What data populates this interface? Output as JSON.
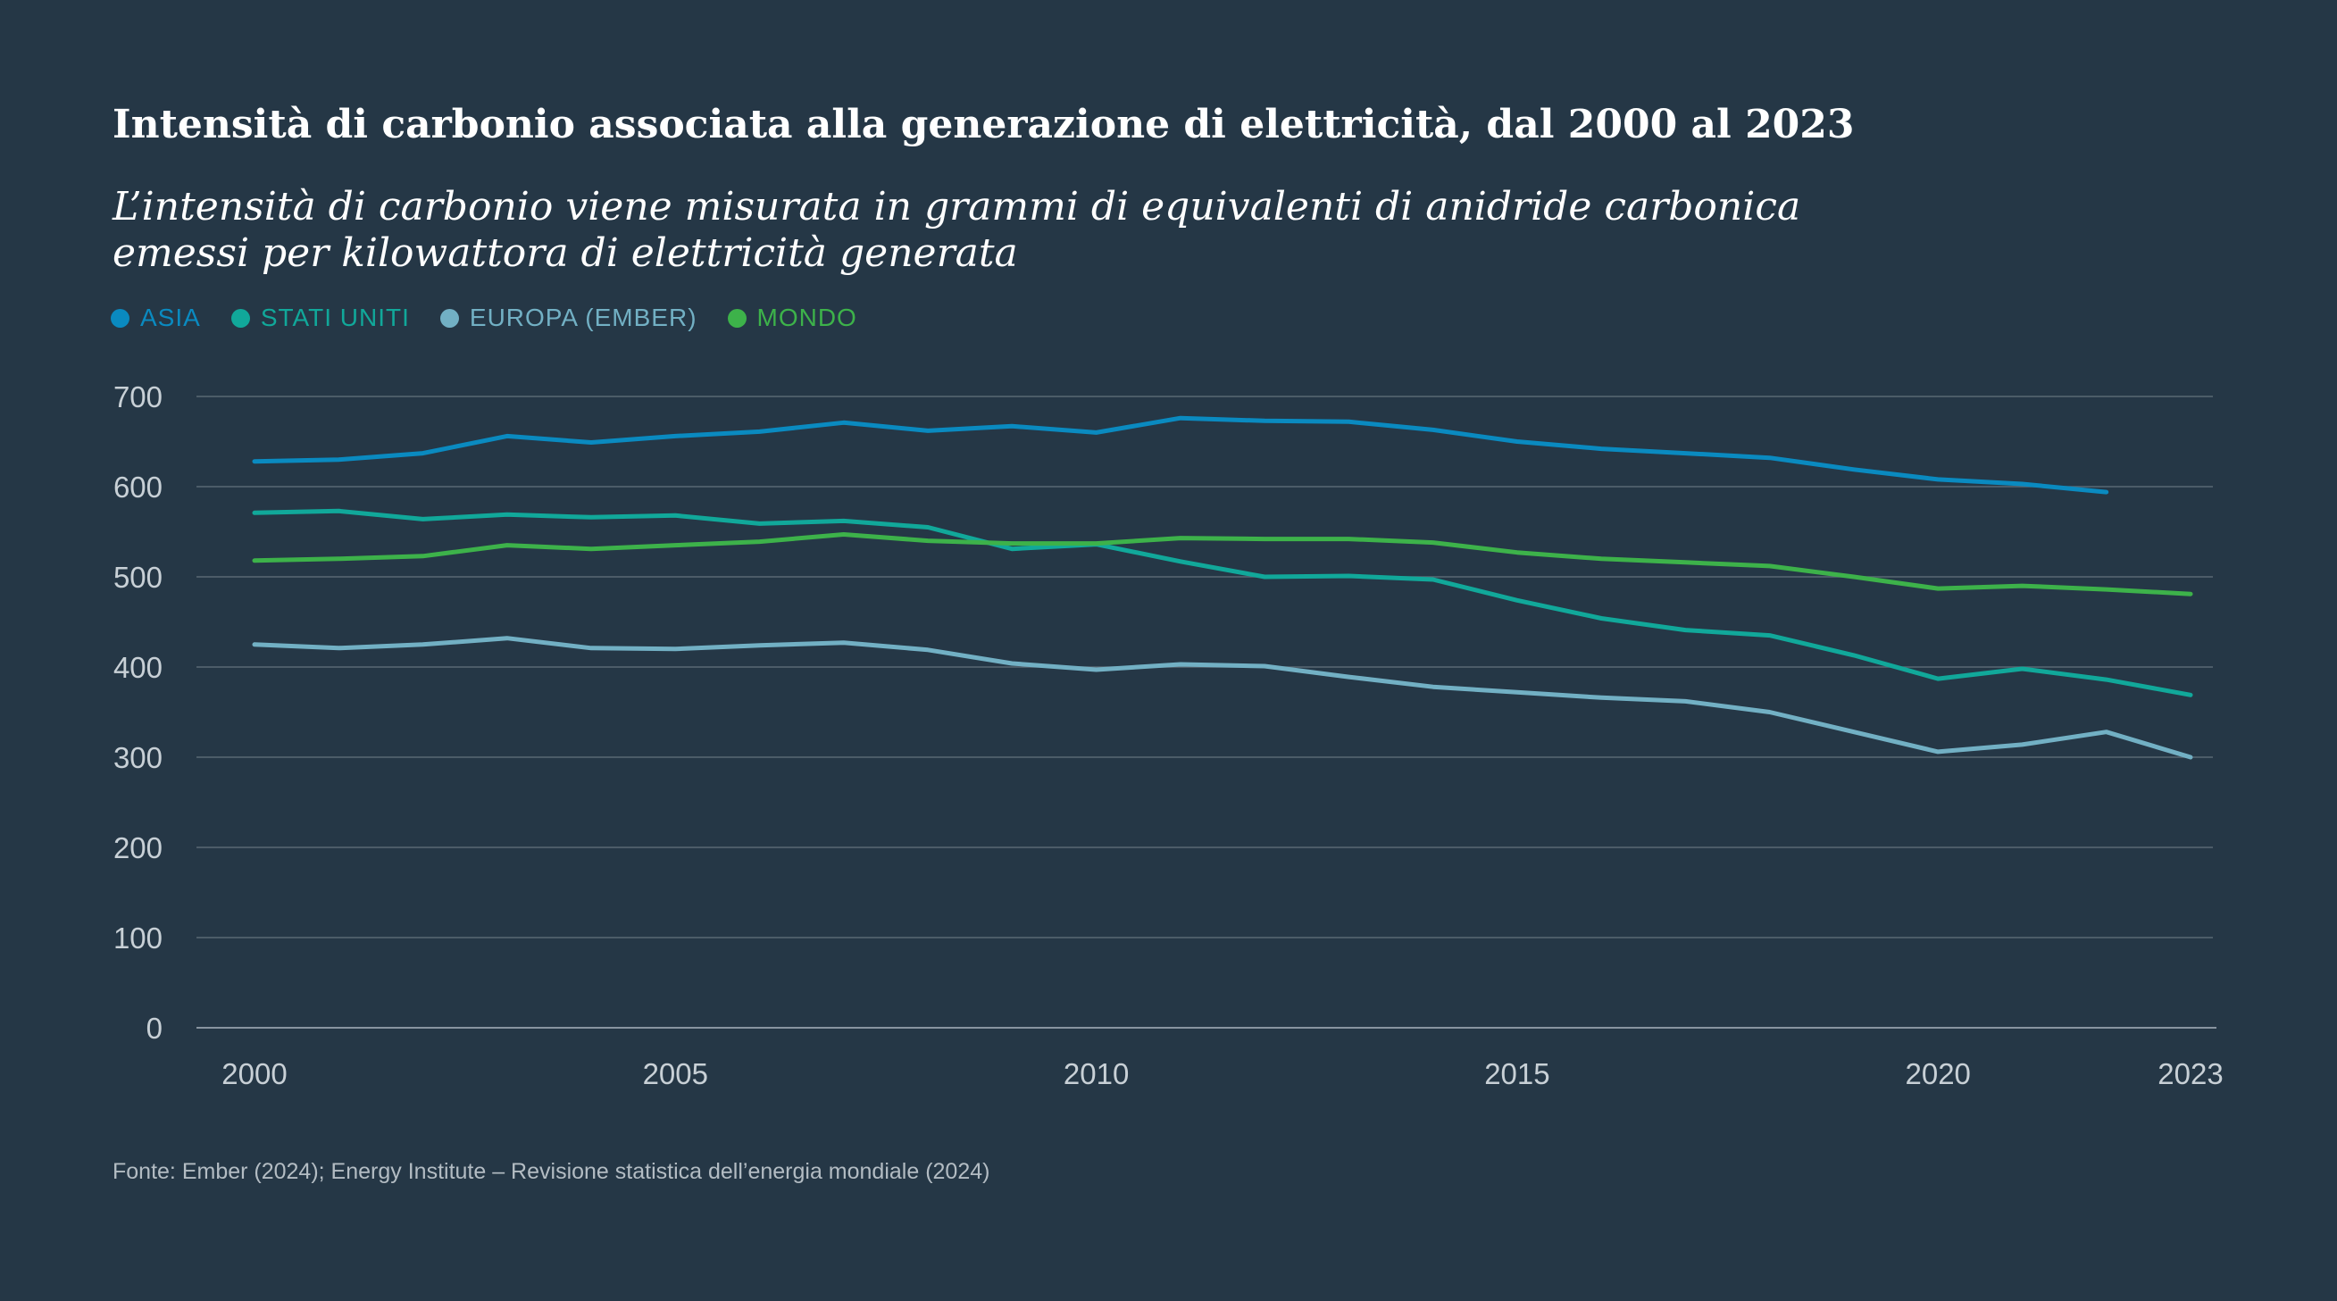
{
  "chart_data": {
    "type": "line",
    "title": "Intensità di carbonio associata alla generazione di elettricità, dal 2000 al 2023",
    "subtitle_line1": "L’intensità di carbonio viene misurata in grammi di equivalenti di anidride carbonica",
    "subtitle_line2": "emessi per kilowattora di elettricità generata",
    "source": "Fonte: Ember (2024); Energy Institute – Revisione statistica dell’energia mondiale (2024)",
    "xlabel": "",
    "ylabel": "",
    "xlim": [
      2000,
      2023
    ],
    "ylim": [
      0,
      700
    ],
    "yticks": [
      0,
      100,
      200,
      300,
      400,
      500,
      600,
      700
    ],
    "xticks": [
      2000,
      2005,
      2010,
      2015,
      2020,
      2023
    ],
    "grid": true,
    "legend_position": "top-left",
    "series": [
      {
        "name": "ASIA",
        "color": "#0a8ac0",
        "x": [
          2000,
          2001,
          2002,
          2003,
          2004,
          2005,
          2006,
          2007,
          2008,
          2009,
          2010,
          2011,
          2012,
          2013,
          2014,
          2015,
          2016,
          2017,
          2018,
          2019,
          2020,
          2021,
          2022
        ],
        "values": [
          628,
          630,
          637,
          656,
          649,
          656,
          661,
          671,
          662,
          667,
          660,
          676,
          673,
          672,
          663,
          650,
          642,
          637,
          632,
          619,
          608,
          603,
          594
        ]
      },
      {
        "name": "STATI UNITI",
        "color": "#11a89a",
        "x": [
          2000,
          2001,
          2002,
          2003,
          2004,
          2005,
          2006,
          2007,
          2008,
          2009,
          2010,
          2011,
          2012,
          2013,
          2014,
          2015,
          2016,
          2017,
          2018,
          2019,
          2020,
          2021,
          2022,
          2023
        ],
        "values": [
          571,
          573,
          564,
          569,
          566,
          568,
          559,
          562,
          555,
          531,
          536,
          517,
          500,
          501,
          497,
          474,
          454,
          441,
          435,
          413,
          387,
          398,
          386,
          369
        ]
      },
      {
        "name": "EUROPA (EMBER)",
        "color": "#72b0c4",
        "x": [
          2000,
          2001,
          2002,
          2003,
          2004,
          2005,
          2006,
          2007,
          2008,
          2009,
          2010,
          2011,
          2012,
          2013,
          2014,
          2015,
          2016,
          2017,
          2018,
          2019,
          2020,
          2021,
          2022,
          2023
        ],
        "values": [
          425,
          421,
          425,
          432,
          421,
          420,
          424,
          427,
          419,
          404,
          397,
          403,
          401,
          389,
          378,
          372,
          366,
          362,
          350,
          328,
          306,
          314,
          328,
          300
        ]
      },
      {
        "name": "MONDO",
        "color": "#3db24a",
        "x": [
          2000,
          2001,
          2002,
          2003,
          2004,
          2005,
          2006,
          2007,
          2008,
          2009,
          2010,
          2011,
          2012,
          2013,
          2014,
          2015,
          2016,
          2017,
          2018,
          2019,
          2020,
          2021,
          2022,
          2023
        ],
        "values": [
          518,
          520,
          523,
          535,
          531,
          535,
          539,
          547,
          540,
          537,
          537,
          543,
          542,
          542,
          538,
          527,
          520,
          516,
          512,
          500,
          487,
          490,
          486,
          481
        ]
      }
    ]
  }
}
